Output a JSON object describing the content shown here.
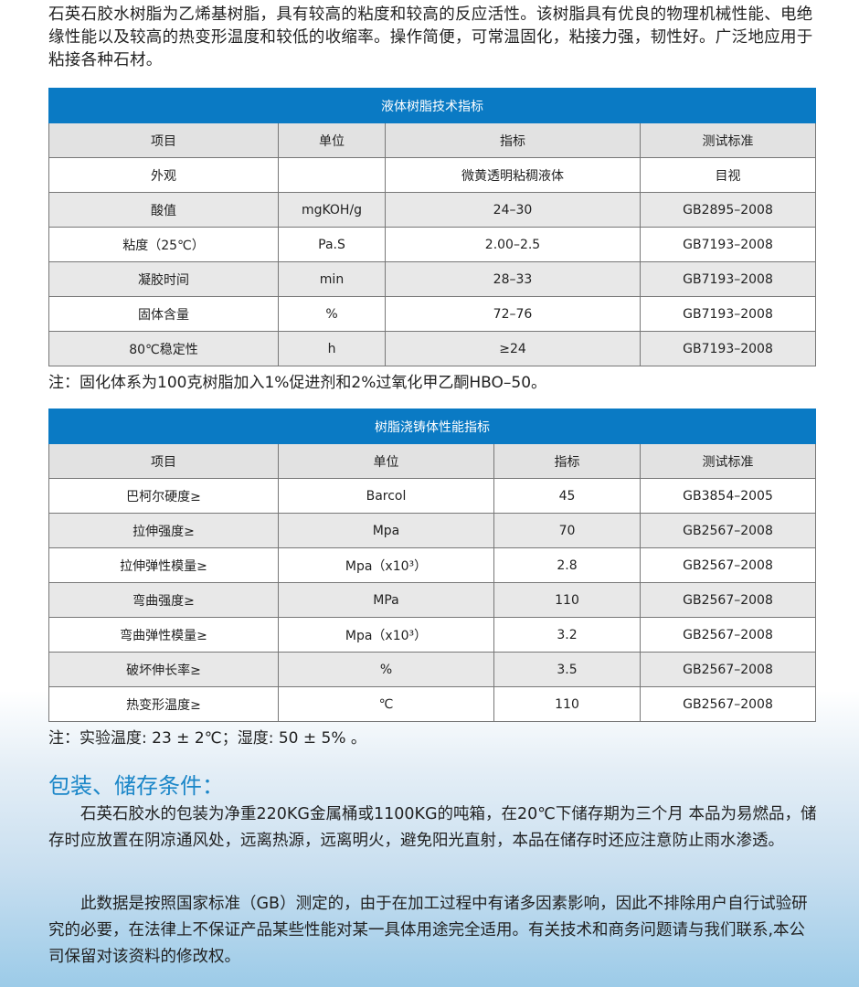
{
  "intro": "石英石胶水树脂为乙烯基树脂，具有较高的粘度和较高的反应活性。该树脂具有优良的物理机械性能、电绝缘性能以及较高的热变形温度和较低的收缩率。操作简便，可常温固化，粘接力强，韧性好。广泛地应用于粘接各种石材。",
  "table1": {
    "title": "液体树脂技术指标",
    "headers": [
      "项目",
      "单位",
      "指标",
      "测试标准"
    ],
    "rows": [
      [
        "外观",
        "",
        "微黄透明粘稠液体",
        "目视"
      ],
      [
        "酸值",
        "mgKOH/g",
        "24–30",
        "GB2895–2008"
      ],
      [
        "粘度（25℃）",
        "Pa.S",
        "2.00–2.5",
        "GB7193–2008"
      ],
      [
        "凝胶时间",
        "min",
        "28–33",
        "GB7193–2008"
      ],
      [
        "固体含量",
        "%",
        "72–76",
        "GB7193–2008"
      ],
      [
        "80℃稳定性",
        "h",
        "≥24",
        "GB7193–2008"
      ]
    ]
  },
  "note1": "注：固化体系为100克树脂加入1%促进剂和2%过氧化甲乙酮HBO–50。",
  "table2": {
    "title": "树脂浇铸体性能指标",
    "headers": [
      "项目",
      "单位",
      "指标",
      "测试标准"
    ],
    "rows": [
      [
        "巴柯尔硬度≥",
        "Barcol",
        "45",
        "GB3854–2005"
      ],
      [
        "拉伸强度≥",
        "Mpa",
        "70",
        "GB2567–2008"
      ],
      [
        "拉伸弹性模量≥",
        "Mpa（x10³）",
        "2.8",
        "GB2567–2008"
      ],
      [
        "弯曲强度≥",
        "MPa",
        "110",
        "GB2567–2008"
      ],
      [
        "弯曲弹性模量≥",
        "Mpa（x10³）",
        "3.2",
        "GB2567–2008"
      ],
      [
        "破坏伸长率≥",
        "%",
        "3.5",
        "GB2567–2008"
      ],
      [
        "热变形温度≥",
        "℃",
        "110",
        "GB2567–2008"
      ]
    ]
  },
  "note2": "注：实验温度: 23 ± 2℃；湿度: 50 ± 5% 。",
  "section_title": "包装、储存条件：",
  "para1": "石英石胶水的包装为净重220KG金属桶或1100KG的吨箱，在20℃下储存期为三个月 本品为易燃品，储存时应放置在阴凉通风处，远离热源，远离明火，避免阳光直射，本品在储存时还应注意防止雨水渗透。",
  "para2": "此数据是按照国家标准（GB）测定的，由于在加工过程中有诸多因素影响，因此不排除用户自行试验研究的必要，在法律上不保证产品某些性能对某一具体用途完全适用。有关技术和商务问题请与我们联系,本公司保留对该资料的修改权。",
  "colors": {
    "header_blue": "#0a7ac4",
    "title_blue": "#1a86c8"
  }
}
